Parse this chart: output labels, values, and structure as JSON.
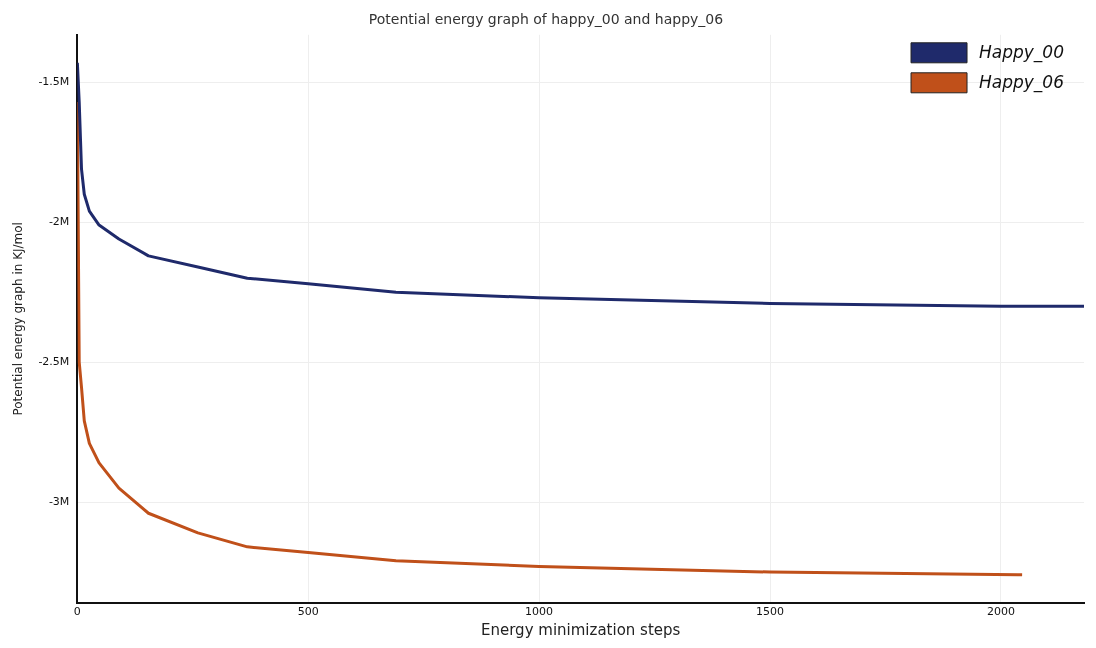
{
  "chart_data": {
    "type": "line",
    "title": "Potential energy graph of happy_00 and happy_06",
    "xlabel": "Energy minimization steps",
    "ylabel": "Potential energy graph in KJ/mol",
    "xlim": [
      0,
      2180
    ],
    "xticks": [
      0,
      500,
      1000,
      1500,
      2000
    ],
    "ylim": [
      -3360000,
      -1330000
    ],
    "yticks": [
      {
        "value": -3000000,
        "label": "-3M"
      },
      {
        "value": -2500000,
        "label": "-2.5M"
      },
      {
        "value": -2000000,
        "label": "-2M"
      },
      {
        "value": -1500000,
        "label": "-1.5M"
      }
    ],
    "grid": true,
    "legend": "top right",
    "marker": "none",
    "series": [
      {
        "name": "Happy_00",
        "color": "#1f2a6b",
        "x": [
          0,
          4,
          9,
          15,
          26,
          47,
          90,
          154,
          261,
          368,
          500,
          690,
          1000,
          1500,
          2000,
          2180
        ],
        "values": [
          -1430000,
          -1570000,
          -1810000,
          -1900000,
          -1960000,
          -2010000,
          -2060000,
          -2120000,
          -2160000,
          -2200000,
          -2220000,
          -2250000,
          -2270000,
          -2290000,
          -2300000,
          -2300000
        ]
      },
      {
        "name": "Happy_06",
        "color": "#c0501a",
        "x": [
          0,
          4,
          9,
          15,
          26,
          47,
          90,
          154,
          261,
          368,
          500,
          690,
          1000,
          1500,
          2046
        ],
        "values": [
          -1570000,
          -2500000,
          -2590000,
          -2710000,
          -2790000,
          -2860000,
          -2950000,
          -3040000,
          -3110000,
          -3160000,
          -3180000,
          -3210000,
          -3230000,
          -3250000,
          -3260000
        ]
      }
    ]
  }
}
